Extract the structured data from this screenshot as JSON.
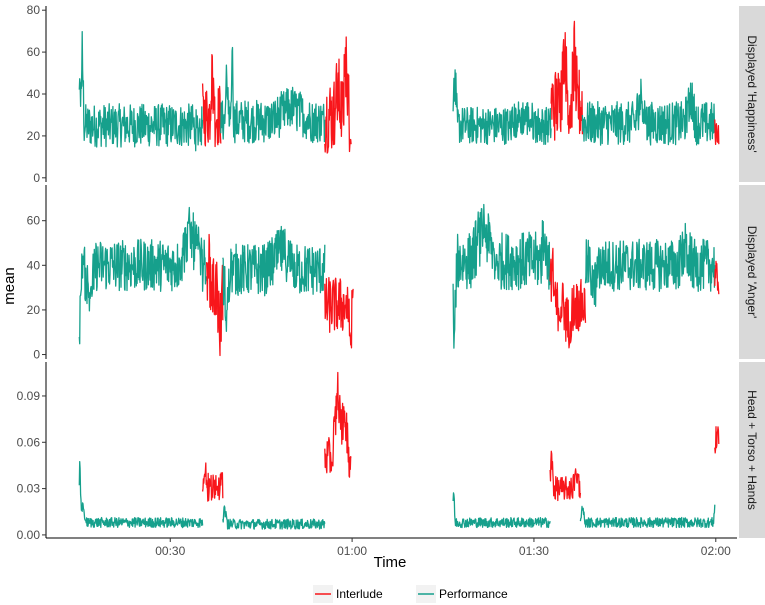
{
  "chart_data": {
    "type": "line",
    "xlabel": "Time",
    "ylabel": "mean",
    "x_ticks": [
      "00:30",
      "01:00",
      "01:30",
      "02:00"
    ],
    "x_tick_seconds": [
      1800,
      3600,
      5400,
      7200
    ],
    "xlim_seconds": [
      570,
      7410
    ],
    "legend": {
      "placement": "bottom",
      "entries": [
        {
          "name": "Interlude",
          "color": "#f8161b"
        },
        {
          "name": "Performance",
          "color": "#16a08c"
        }
      ]
    },
    "panels": [
      {
        "strip": "Displayed 'Happiness'",
        "ylim": [
          -2,
          82
        ],
        "y_ticks": [
          0,
          20,
          40,
          60,
          80
        ],
        "y_tick_labels": [
          "0",
          "20",
          "40",
          "60",
          "80"
        ],
        "segments": [
          {
            "series": "Performance",
            "t0": 900,
            "t1": 2120,
            "base": 25,
            "noise": 8,
            "peaks": [
              [
                905,
                45,
                40
              ],
              [
                930,
                62,
                15
              ],
              [
                2060,
                22,
                40
              ]
            ]
          },
          {
            "series": "Interlude",
            "t0": 2120,
            "t1": 2300,
            "base": 30,
            "noise": 12,
            "peaks": [
              [
                2215,
                55,
                25
              ]
            ]
          },
          {
            "series": "Performance",
            "t0": 2300,
            "t1": 3330,
            "base": 27,
            "noise": 8,
            "peaks": [
              [
                2415,
                78,
                10
              ],
              [
                2360,
                55,
                20
              ],
              [
                3000,
                35,
                200
              ]
            ]
          },
          {
            "series": "Interlude",
            "t0": 3330,
            "t1": 3590,
            "base": 30,
            "noise": 14,
            "peaks": [
              [
                3540,
                62,
                30
              ],
              [
                3460,
                45,
                40
              ]
            ]
          },
          {
            "series": "Performance",
            "t0": 4600,
            "t1": 5570,
            "base": 25,
            "noise": 7,
            "peaks": [
              [
                4620,
                58,
                20
              ],
              [
                4605,
                40,
                10
              ],
              [
                5300,
                30,
                150
              ]
            ]
          },
          {
            "series": "Interlude",
            "t0": 5570,
            "t1": 5880,
            "base": 35,
            "noise": 14,
            "peaks": [
              [
                5700,
                68,
                40
              ],
              [
                5800,
                62,
                30
              ]
            ]
          },
          {
            "series": "Performance",
            "t0": 5880,
            "t1": 7190,
            "base": 26,
            "noise": 8,
            "peaks": [
              [
                6460,
                42,
                60
              ],
              [
                6950,
                40,
                60
              ]
            ]
          },
          {
            "series": "Interlude",
            "t0": 7190,
            "t1": 7230,
            "base": 22,
            "noise": 5,
            "peaks": []
          }
        ]
      },
      {
        "strip": "Displayed 'Anger'",
        "ylim": [
          -2,
          76
        ],
        "y_ticks": [
          0,
          20,
          40,
          60
        ],
        "y_tick_labels": [
          "0",
          "20",
          "40",
          "60"
        ],
        "segments": [
          {
            "series": "Performance",
            "t0": 900,
            "t1": 2160,
            "base": 40,
            "noise": 9,
            "peaks": [
              [
                900,
                8,
                30
              ],
              [
                1000,
                22,
                60
              ],
              [
                2000,
                58,
                120
              ]
            ]
          },
          {
            "series": "Interlude",
            "t0": 2160,
            "t1": 2320,
            "base": 30,
            "noise": 12,
            "peaks": [
              [
                2180,
                48,
                25
              ],
              [
                2290,
                8,
                30
              ]
            ]
          },
          {
            "series": "Performance",
            "t0": 2320,
            "t1": 3330,
            "base": 38,
            "noise": 9,
            "peaks": [
              [
                2360,
                15,
                40
              ],
              [
                2900,
                48,
                150
              ]
            ]
          },
          {
            "series": "Interlude",
            "t0": 3330,
            "t1": 3610,
            "base": 22,
            "noise": 10,
            "peaks": [
              [
                3580,
                8,
                30
              ]
            ]
          },
          {
            "series": "Performance",
            "t0": 4600,
            "t1": 5560,
            "base": 42,
            "noise": 10,
            "peaks": [
              [
                4610,
                5,
                25
              ],
              [
                4900,
                60,
                120
              ],
              [
                5500,
                60,
                30
              ]
            ]
          },
          {
            "series": "Interlude",
            "t0": 5560,
            "t1": 5910,
            "base": 22,
            "noise": 9,
            "peaks": [
              [
                5580,
                45,
                25
              ],
              [
                5740,
                12,
                50
              ]
            ]
          },
          {
            "series": "Performance",
            "t0": 5910,
            "t1": 7190,
            "base": 40,
            "noise": 9,
            "peaks": [
              [
                6000,
                28,
                60
              ],
              [
                6900,
                48,
                80
              ]
            ]
          },
          {
            "series": "Interlude",
            "t0": 7190,
            "t1": 7230,
            "base": 34,
            "noise": 6,
            "peaks": []
          }
        ]
      },
      {
        "strip": "Head + Torso + Hands",
        "ylim": [
          -0.002,
          0.112
        ],
        "y_ticks": [
          0,
          0.03,
          0.06,
          0.09
        ],
        "y_tick_labels": [
          "0.00",
          "0.03",
          "0.06",
          "0.09"
        ],
        "segments": [
          {
            "series": "Performance",
            "t0": 900,
            "t1": 2120,
            "base": 0.008,
            "noise": 0.0025,
            "peaks": [
              [
                905,
                0.048,
                15
              ],
              [
                930,
                0.02,
                40
              ]
            ]
          },
          {
            "series": "Interlude",
            "t0": 2120,
            "t1": 2320,
            "base": 0.03,
            "noise": 0.008,
            "peaks": [
              [
                2140,
                0.052,
                25
              ],
              [
                2260,
                0.038,
                40
              ]
            ]
          },
          {
            "series": "Performance",
            "t0": 2320,
            "t1": 3330,
            "base": 0.007,
            "noise": 0.0025,
            "peaks": [
              [
                2340,
                0.02,
                25
              ]
            ]
          },
          {
            "series": "Interlude",
            "t0": 3330,
            "t1": 3590,
            "base": 0.05,
            "noise": 0.01,
            "peaks": [
              [
                3460,
                0.1,
                60
              ],
              [
                3530,
                0.085,
                40
              ]
            ]
          },
          {
            "series": "Performance",
            "t0": 4600,
            "t1": 5560,
            "base": 0.008,
            "noise": 0.0025,
            "peaks": [
              [
                4605,
                0.035,
                15
              ]
            ]
          },
          {
            "series": "Interlude",
            "t0": 5560,
            "t1": 5860,
            "base": 0.03,
            "noise": 0.006,
            "peaks": [
              [
                5575,
                0.055,
                20
              ],
              [
                5820,
                0.04,
                40
              ]
            ]
          },
          {
            "series": "Performance",
            "t0": 5860,
            "t1": 7190,
            "base": 0.008,
            "noise": 0.0025,
            "peaks": [
              [
                5880,
                0.02,
                30
              ],
              [
                7190,
                0.02,
                15
              ]
            ]
          },
          {
            "series": "Interlude",
            "t0": 7190,
            "t1": 7230,
            "base": 0.058,
            "noise": 0.008,
            "peaks": [
              [
                7215,
                0.072,
                15
              ]
            ]
          }
        ]
      }
    ]
  }
}
